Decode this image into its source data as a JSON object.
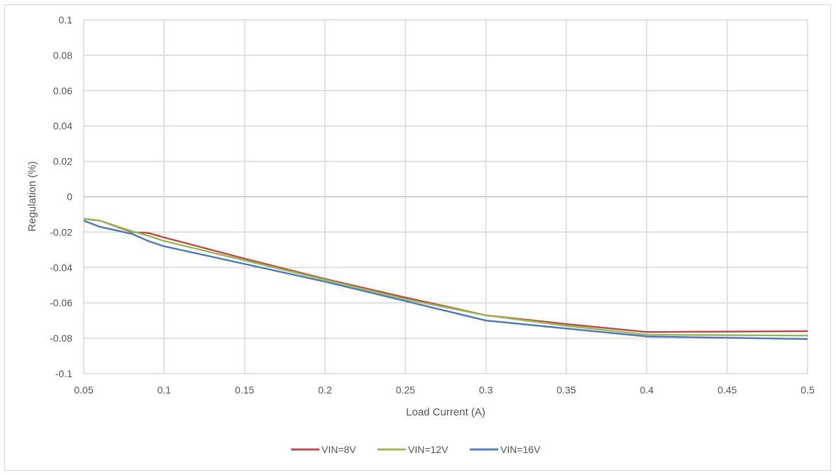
{
  "chart_data": {
    "type": "line",
    "title": "",
    "xlabel": "Load Current (A)",
    "ylabel": "Regulation (%)",
    "xlim": [
      0.05,
      0.5
    ],
    "ylim": [
      -0.1,
      0.1
    ],
    "x_ticks": [
      "0.05",
      "0.1",
      "0.15",
      "0.2",
      "0.25",
      "0.3",
      "0.35",
      "0.4",
      "0.45",
      "0.5"
    ],
    "y_ticks": [
      "0.1",
      "0.08",
      "0.06",
      "0.04",
      "0.02",
      "0",
      "-0.02",
      "-0.04",
      "-0.06",
      "-0.08",
      "-0.1"
    ],
    "grid": true,
    "legend_position": "bottom",
    "x": [
      0.05,
      0.06,
      0.08,
      0.09,
      0.1,
      0.15,
      0.2,
      0.25,
      0.3,
      0.35,
      0.4,
      0.5
    ],
    "series": [
      {
        "name": "VIN=8V",
        "color": "#c0504d",
        "values": [
          -0.0125,
          -0.0135,
          -0.02,
          -0.0205,
          -0.023,
          -0.035,
          -0.0465,
          -0.057,
          -0.067,
          -0.072,
          -0.0765,
          -0.076
        ]
      },
      {
        "name": "VIN=12V",
        "color": "#9bbb59",
        "values": [
          -0.0125,
          -0.0135,
          -0.0195,
          -0.022,
          -0.025,
          -0.036,
          -0.047,
          -0.058,
          -0.067,
          -0.073,
          -0.078,
          -0.0785
        ]
      },
      {
        "name": "VIN=16V",
        "color": "#4f81bd",
        "values": [
          -0.0135,
          -0.017,
          -0.021,
          -0.025,
          -0.028,
          -0.038,
          -0.048,
          -0.059,
          -0.07,
          -0.0745,
          -0.079,
          -0.0805
        ]
      }
    ]
  }
}
